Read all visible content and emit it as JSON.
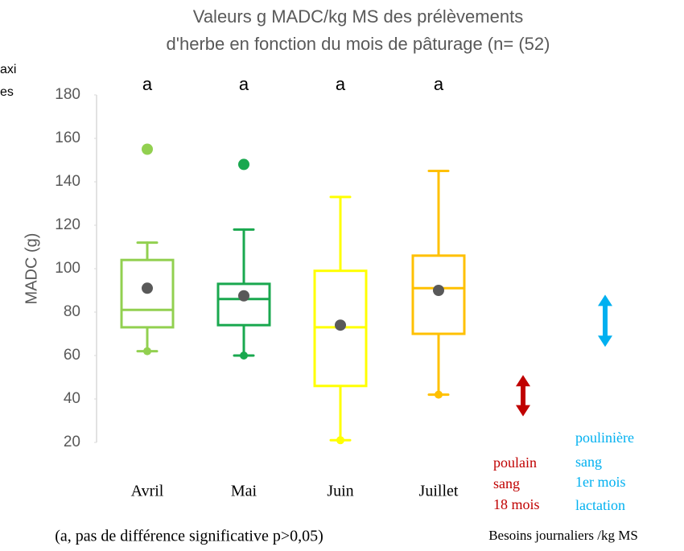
{
  "chart_data": {
    "type": "box",
    "title_lines": [
      "Valeurs g MADC/kg MS des prélèvements",
      "d'herbe en fonction du mois de pâturage (n= (52)"
    ],
    "ylabel": "MADC (g)",
    "ylim": [
      20,
      180
    ],
    "yticks": [
      20,
      40,
      60,
      80,
      100,
      120,
      140,
      160,
      180
    ],
    "categories": [
      "Avril",
      "Mai",
      "Juin",
      "Juillet"
    ],
    "letters": [
      "a",
      "a",
      "a",
      "a"
    ],
    "boxes": [
      {
        "color": "#92d050",
        "whisker_low": 62,
        "q1": 73,
        "median": 81,
        "q3": 104,
        "whisker_high": 112,
        "mean": 91,
        "outliers": [
          155
        ]
      },
      {
        "color": "#1aa84f",
        "whisker_low": 60,
        "q1": 74,
        "median": 86,
        "q3": 93,
        "whisker_high": 118,
        "mean": 87.5,
        "outliers": [
          148
        ]
      },
      {
        "color": "#ffff00",
        "whisker_low": 21,
        "q1": 46,
        "median": 73,
        "q3": 99,
        "whisker_high": 133,
        "mean": 74,
        "outliers": []
      },
      {
        "color": "#ffc000",
        "whisker_low": 42,
        "q1": 70,
        "median": 91,
        "q3": 106,
        "whisker_high": 145,
        "mean": 90,
        "outliers": []
      }
    ],
    "mean_color": "#595959",
    "needs": [
      {
        "color": "#c00000",
        "low": 32,
        "high": 51,
        "label_lines": [
          "poulain",
          "sang",
          "18 mois"
        ]
      },
      {
        "color": "#00b0f0",
        "low": 64,
        "high": 88,
        "label_lines": [
          "poulinière",
          "sang",
          "1er mois",
          "lactation"
        ]
      }
    ],
    "needs_caption": "Besoins journaliers /kg MS",
    "footnote": "(a, pas de différence significative p>0,05)",
    "legend_fragments": [
      "axi",
      "es"
    ]
  }
}
